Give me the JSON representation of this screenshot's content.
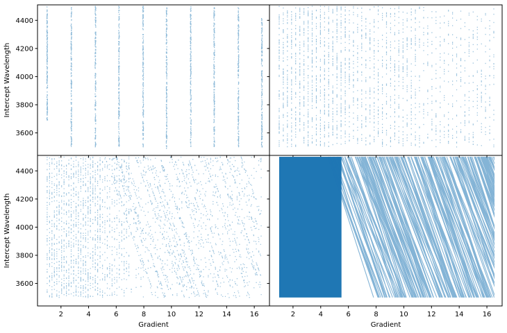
{
  "chart_data": [
    {
      "type": "scatter",
      "panel": "top-left",
      "xlabel": "",
      "ylabel": "Intercept Wavelength",
      "xlim": [
        0.3,
        17.1
      ],
      "ylim": [
        3440,
        4510
      ],
      "xticks": [],
      "yticks": [
        "3600",
        "3800",
        "4000",
        "4200",
        "4400"
      ],
      "marker_color": "#1f77b4",
      "pattern": "vertical-columns",
      "columns": [
        {
          "x": 1.0,
          "y_min": 3690,
          "y_max": 4500
        },
        {
          "x": 2.75,
          "y_min": 3500,
          "y_max": 4500
        },
        {
          "x": 4.5,
          "y_min": 3500,
          "y_max": 4500
        },
        {
          "x": 6.2,
          "y_min": 3500,
          "y_max": 4500
        },
        {
          "x": 7.95,
          "y_min": 3500,
          "y_max": 4500
        },
        {
          "x": 9.65,
          "y_min": 3490,
          "y_max": 4500
        },
        {
          "x": 11.4,
          "y_min": 3500,
          "y_max": 4500
        },
        {
          "x": 13.1,
          "y_min": 3500,
          "y_max": 4500
        },
        {
          "x": 14.85,
          "y_min": 3500,
          "y_max": 4500
        },
        {
          "x": 16.55,
          "y_min": 3500,
          "y_max": 4420
        }
      ]
    },
    {
      "type": "scatter",
      "panel": "top-right",
      "xlabel": "",
      "ylabel": "",
      "xlim": [
        0.3,
        17.1
      ],
      "ylim": [
        3440,
        4510
      ],
      "xticks": [],
      "yticks": [],
      "marker_color": "#1f77b4",
      "pattern": "dense-columns",
      "x_range": [
        1.0,
        16.5
      ],
      "y_range": [
        3500,
        4500
      ],
      "column_count": 53
    },
    {
      "type": "scatter",
      "panel": "bottom-left",
      "xlabel": "Gradient",
      "ylabel": "Intercept Wavelength",
      "xlim": [
        0.3,
        17.1
      ],
      "ylim": [
        3440,
        4510
      ],
      "xticks": [
        "2",
        "4",
        "6",
        "8",
        "10",
        "12",
        "14",
        "16"
      ],
      "yticks": [
        "3600",
        "3800",
        "4000",
        "4200",
        "4400"
      ],
      "marker_color": "#1f77b4",
      "pattern": "columns-and-diagonals",
      "x_range": [
        1.0,
        16.5
      ],
      "y_range": [
        3500,
        4500
      ]
    },
    {
      "type": "scatter",
      "panel": "bottom-right",
      "xlabel": "Gradient",
      "ylabel": "",
      "xlim": [
        0.3,
        17.1
      ],
      "ylim": [
        3440,
        4510
      ],
      "xticks": [
        "2",
        "4",
        "6",
        "8",
        "10",
        "12",
        "14",
        "16"
      ],
      "yticks": [],
      "marker_color": "#1f77b4",
      "pattern": "saturated-diagonals",
      "x_range": [
        1.0,
        16.5
      ],
      "y_range": [
        3500,
        4500
      ]
    }
  ]
}
